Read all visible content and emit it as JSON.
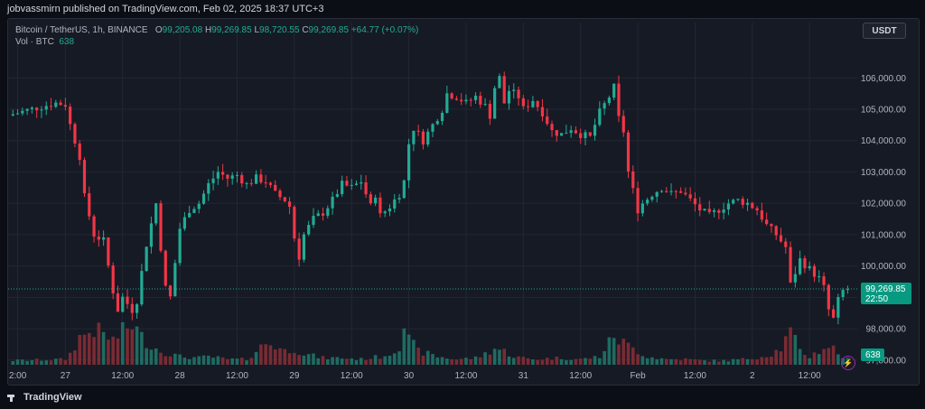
{
  "header": {
    "publisher": "jobvassmirn published on TradingView.com, Feb 02, 2025 18:37 UTC+3"
  },
  "legend": {
    "symbol": "Bitcoin / TetherUS, 1h, BINANCE",
    "o_label": "O",
    "o_value": "99,205.08",
    "h_label": "H",
    "h_value": "99,269.85",
    "l_label": "L",
    "l_value": "98,720.55",
    "c_label": "C",
    "c_value": "99,269.85",
    "change": "+64.77 (+0.07%)",
    "vol_label": "Vol · BTC",
    "vol_value": "638"
  },
  "currency_button": "USDT",
  "footer": {
    "brand": "TradingView"
  },
  "colors": {
    "up": "#22ab94",
    "down": "#f23645",
    "up_vol": "#1f6b62",
    "down_vol": "#7a2b33",
    "grid": "#232733",
    "text": "#b2b5be"
  },
  "icons": [
    "tradingview-logo-icon",
    "lightning-icon"
  ],
  "chart_data": {
    "type": "candlestick",
    "y_ticks": [
      "97,000.00",
      "98,000.00",
      "99,000.00",
      "100,000.00",
      "101,000.00",
      "102,000.00",
      "103,000.00",
      "104,000.00",
      "105,000.00",
      "106,000.00"
    ],
    "y_values": [
      97000,
      98000,
      99000,
      100000,
      101000,
      102000,
      103000,
      104000,
      105000,
      106000
    ],
    "x_ticks": [
      "2:00",
      "27",
      "12:00",
      "28",
      "12:00",
      "29",
      "12:00",
      "30",
      "12:00",
      "31",
      "12:00",
      "Feb",
      "12:00",
      "2",
      "12:00"
    ],
    "x_tick_hours": [
      -10,
      0,
      12,
      24,
      36,
      48,
      60,
      72,
      84,
      96,
      108,
      120,
      132,
      144,
      156
    ],
    "x_range_hours": [
      -12,
      166
    ],
    "ylim": [
      96850,
      106900
    ],
    "last_price": {
      "value": 99269.85,
      "label": "99,269.85",
      "countdown": "22:50"
    },
    "last_volume": {
      "label": "638"
    },
    "price_path": [
      [
        -12,
        104800
      ],
      [
        -6,
        105050
      ],
      [
        -2,
        105200
      ],
      [
        0,
        105150
      ],
      [
        1,
        104500
      ],
      [
        3,
        103500
      ],
      [
        4,
        102200
      ],
      [
        6,
        101000
      ],
      [
        8,
        100800
      ],
      [
        10,
        99200
      ],
      [
        11,
        98600
      ],
      [
        12,
        99000
      ],
      [
        14,
        98600
      ],
      [
        15,
        98900
      ],
      [
        17,
        100700
      ],
      [
        19,
        102000
      ],
      [
        20,
        100600
      ],
      [
        21,
        99300
      ],
      [
        22,
        99000
      ],
      [
        24,
        101200
      ],
      [
        26,
        101800
      ],
      [
        28,
        102000
      ],
      [
        30,
        102600
      ],
      [
        32,
        103000
      ],
      [
        34,
        102800
      ],
      [
        36,
        102900
      ],
      [
        38,
        102600
      ],
      [
        40,
        102800
      ],
      [
        42,
        102700
      ],
      [
        44,
        102300
      ],
      [
        46,
        102100
      ],
      [
        47,
        101900
      ],
      [
        48,
        100900
      ],
      [
        49,
        100300
      ],
      [
        50,
        101000
      ],
      [
        52,
        101500
      ],
      [
        54,
        101700
      ],
      [
        56,
        102100
      ],
      [
        58,
        102600
      ],
      [
        60,
        102500
      ],
      [
        62,
        102700
      ],
      [
        64,
        101900
      ],
      [
        65,
        102300
      ],
      [
        66,
        101600
      ],
      [
        68,
        101900
      ],
      [
        70,
        102300
      ],
      [
        71,
        102700
      ],
      [
        72,
        103900
      ],
      [
        73,
        104400
      ],
      [
        75,
        104000
      ],
      [
        77,
        104500
      ],
      [
        79,
        105000
      ],
      [
        80,
        105500
      ],
      [
        82,
        105400
      ],
      [
        84,
        105200
      ],
      [
        86,
        105400
      ],
      [
        88,
        105100
      ],
      [
        89,
        104800
      ],
      [
        90,
        105700
      ],
      [
        91,
        106000
      ],
      [
        92,
        105200
      ],
      [
        93,
        105600
      ],
      [
        95,
        105400
      ],
      [
        96,
        105000
      ],
      [
        98,
        105300
      ],
      [
        100,
        104900
      ],
      [
        102,
        104300
      ],
      [
        104,
        104200
      ],
      [
        106,
        104400
      ],
      [
        108,
        104200
      ],
      [
        110,
        104100
      ],
      [
        112,
        104900
      ],
      [
        114,
        105400
      ],
      [
        115,
        105700
      ],
      [
        116,
        104700
      ],
      [
        117,
        104300
      ],
      [
        118,
        103000
      ],
      [
        119,
        102400
      ],
      [
        120,
        101800
      ],
      [
        121,
        102000
      ],
      [
        123,
        102300
      ],
      [
        125,
        102500
      ],
      [
        127,
        102300
      ],
      [
        129,
        102400
      ],
      [
        131,
        102100
      ],
      [
        133,
        101800
      ],
      [
        135,
        101600
      ],
      [
        137,
        101800
      ],
      [
        139,
        102000
      ],
      [
        141,
        102100
      ],
      [
        143,
        102000
      ],
      [
        145,
        101800
      ],
      [
        147,
        101300
      ],
      [
        149,
        101000
      ],
      [
        151,
        100600
      ],
      [
        152,
        99400
      ],
      [
        153,
        99800
      ],
      [
        154,
        100200
      ],
      [
        156,
        99900
      ],
      [
        158,
        99600
      ],
      [
        159,
        99300
      ],
      [
        160,
        98600
      ],
      [
        161,
        98300
      ],
      [
        162,
        98900
      ],
      [
        163,
        99205
      ],
      [
        164,
        99269.85
      ]
    ],
    "volume_profile": [
      [
        -12,
        3
      ],
      [
        0,
        4
      ],
      [
        1,
        8
      ],
      [
        3,
        20
      ],
      [
        6,
        26
      ],
      [
        8,
        22
      ],
      [
        10,
        18
      ],
      [
        12,
        24
      ],
      [
        14,
        30
      ],
      [
        16,
        20
      ],
      [
        18,
        14
      ],
      [
        20,
        10
      ],
      [
        22,
        8
      ],
      [
        24,
        6
      ],
      [
        28,
        5
      ],
      [
        30,
        6
      ],
      [
        34,
        4
      ],
      [
        38,
        4
      ],
      [
        40,
        10
      ],
      [
        42,
        16
      ],
      [
        44,
        14
      ],
      [
        46,
        10
      ],
      [
        48,
        12
      ],
      [
        50,
        8
      ],
      [
        54,
        5
      ],
      [
        58,
        5
      ],
      [
        62,
        4
      ],
      [
        66,
        6
      ],
      [
        68,
        8
      ],
      [
        70,
        14
      ],
      [
        71,
        30
      ],
      [
        72,
        18
      ],
      [
        74,
        10
      ],
      [
        78,
        6
      ],
      [
        82,
        4
      ],
      [
        86,
        5
      ],
      [
        88,
        8
      ],
      [
        90,
        12
      ],
      [
        92,
        10
      ],
      [
        94,
        6
      ],
      [
        98,
        4
      ],
      [
        104,
        5
      ],
      [
        108,
        4
      ],
      [
        112,
        6
      ],
      [
        114,
        16
      ],
      [
        115,
        22
      ],
      [
        116,
        18
      ],
      [
        118,
        14
      ],
      [
        120,
        10
      ],
      [
        122,
        6
      ],
      [
        126,
        4
      ],
      [
        130,
        4
      ],
      [
        134,
        3
      ],
      [
        138,
        3
      ],
      [
        142,
        4
      ],
      [
        146,
        6
      ],
      [
        148,
        8
      ],
      [
        150,
        12
      ],
      [
        152,
        24
      ],
      [
        154,
        10
      ],
      [
        156,
        6
      ],
      [
        158,
        10
      ],
      [
        160,
        14
      ],
      [
        161,
        12
      ],
      [
        162,
        8
      ],
      [
        164,
        4
      ]
    ],
    "volume_max": 60
  }
}
